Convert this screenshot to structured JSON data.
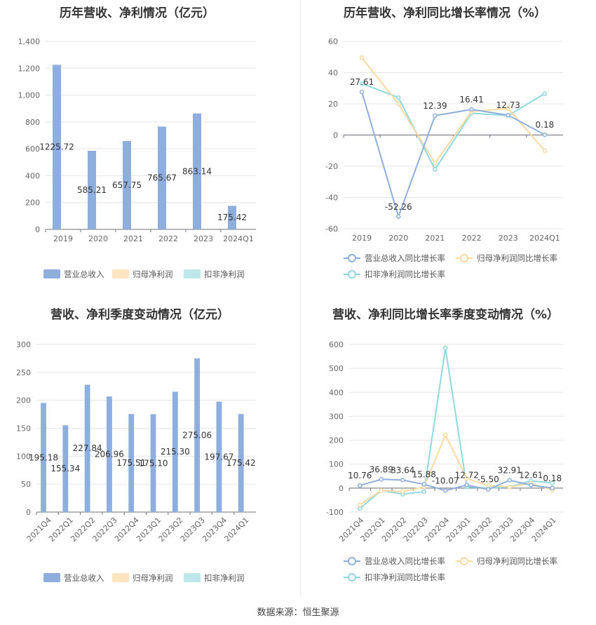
{
  "source": "数据来源：恒生聚源",
  "chart_data": [
    {
      "type": "bar",
      "title": "历年营收、净利情况（亿元）",
      "categories": [
        "2019",
        "2020",
        "2021",
        "2022",
        "2023",
        "2024Q1"
      ],
      "ylim": [
        0,
        1400
      ],
      "yticks": [
        "0",
        "200",
        "400",
        "600",
        "800",
        "1,000",
        "1,200",
        "1,400"
      ],
      "legend_position": "bottom",
      "grid": true,
      "series": [
        {
          "name": "营业总收入",
          "color": "#8eaedd",
          "values": [
            1225.72,
            585.21,
            657.75,
            765.67,
            863.14,
            175.42
          ],
          "labels": [
            "1225.72",
            "585.21",
            "657.75",
            "765.67",
            "863.14",
            "175.42"
          ]
        },
        {
          "name": "归母净利润",
          "color": "#fde5bf",
          "values": [
            null,
            null,
            null,
            null,
            null,
            null
          ]
        },
        {
          "name": "扣非净利润",
          "color": "#bde7ea",
          "values": [
            null,
            null,
            null,
            null,
            null,
            null
          ]
        }
      ]
    },
    {
      "type": "line",
      "title": "历年营收、净利同比增长率情况（%）",
      "categories": [
        "2019",
        "2020",
        "2021",
        "2022",
        "2023",
        "2024Q1"
      ],
      "ylim": [
        -60,
        60
      ],
      "yticks": [
        "-60",
        "-40",
        "-20",
        "0",
        "20",
        "40",
        "60"
      ],
      "legend_position": "bottom",
      "grid": true,
      "series": [
        {
          "name": "营业总收入同比增长率",
          "color": "#8eaedd",
          "values": [
            27.61,
            -52.26,
            12.39,
            16.41,
            12.73,
            0.18
          ],
          "labels": [
            "27.61",
            "-52.26",
            "12.39",
            "16.41",
            "12.73",
            "0.18"
          ]
        },
        {
          "name": "归母净利润同比增长率",
          "color": "#fcd9a0",
          "values": [
            49.5,
            20,
            -18,
            15,
            17,
            -10
          ]
        },
        {
          "name": "扣非净利润同比增长率",
          "color": "#8fd9de",
          "values": [
            33,
            24,
            -22,
            14,
            12.5,
            26.5
          ]
        }
      ]
    },
    {
      "type": "bar",
      "title": "营收、净利季度变动情况（亿元）",
      "categories": [
        "2021Q4",
        "2022Q1",
        "2022Q2",
        "2022Q3",
        "2022Q4",
        "2023Q1",
        "2023Q2",
        "2023Q3",
        "2023Q4",
        "2024Q1"
      ],
      "ylim": [
        0,
        300
      ],
      "yticks": [
        "0",
        "50",
        "100",
        "150",
        "200",
        "250",
        "300"
      ],
      "legend_position": "bottom",
      "grid": true,
      "series": [
        {
          "name": "营业总收入",
          "color": "#8eaedd",
          "values": [
            195.18,
            155.34,
            227.84,
            206.96,
            175.51,
            175.1,
            215.3,
            275.06,
            197.67,
            175.42
          ],
          "labels": [
            "195.18",
            "155.34",
            "227.84",
            "206.96",
            "175.51",
            "175.10",
            "215.30",
            "275.06",
            "197.67",
            "175.42"
          ]
        },
        {
          "name": "归母净利润",
          "color": "#fde5bf",
          "values": [
            null,
            null,
            null,
            null,
            null,
            null,
            null,
            null,
            null,
            null
          ]
        },
        {
          "name": "扣非净利润",
          "color": "#bde7ea",
          "values": [
            null,
            null,
            null,
            null,
            null,
            null,
            null,
            null,
            null,
            null
          ]
        }
      ]
    },
    {
      "type": "line",
      "title": "营收、净利同比增长率季度变动情况（%）",
      "categories": [
        "2021Q4",
        "2022Q1",
        "2022Q2",
        "2022Q3",
        "2022Q4",
        "2023Q1",
        "2023Q2",
        "2023Q3",
        "2023Q4",
        "2024Q1"
      ],
      "ylim": [
        -100,
        600
      ],
      "yticks": [
        "-100",
        "0",
        "100",
        "200",
        "300",
        "400",
        "500",
        "600"
      ],
      "legend_position": "bottom",
      "grid": true,
      "series": [
        {
          "name": "营业总收入同比增长率",
          "color": "#8eaedd",
          "values": [
            10.76,
            36.89,
            33.64,
            15.88,
            -10.07,
            12.72,
            -5.5,
            32.91,
            12.61,
            0.18
          ],
          "labels": [
            "10.76",
            "36.89",
            "33.64",
            "15.88",
            "-10.07",
            "12.72",
            "-5.50",
            "32.91",
            "12.61",
            "0.18"
          ]
        },
        {
          "name": "归母净利润同比增长率",
          "color": "#fcd9a0",
          "values": [
            -70,
            -10,
            -15,
            5,
            222,
            40,
            10,
            5,
            20,
            -8
          ]
        },
        {
          "name": "扣非净利润同比增长率",
          "color": "#8fd9de",
          "values": [
            -85,
            -10,
            -25,
            -15,
            585,
            5,
            0,
            5,
            30,
            22
          ]
        }
      ]
    }
  ]
}
